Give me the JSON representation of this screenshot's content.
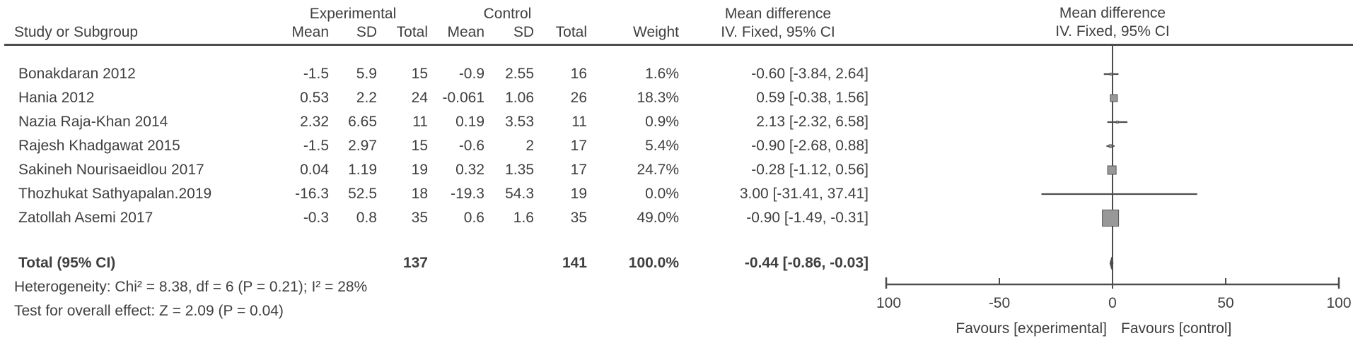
{
  "table": {
    "headers": {
      "group1": "Experimental",
      "group2": "Control",
      "study": "Study or Subgroup",
      "mean": "Mean",
      "sd": "SD",
      "total": "Total",
      "weight": "Weight",
      "md": "Mean difference",
      "method": "IV. Fixed, 95% CI"
    },
    "rows": [
      {
        "study": "Bonakdaran 2012",
        "e_mean": "-1.5",
        "e_sd": "5.9",
        "e_total": "15",
        "c_mean": "-0.9",
        "c_sd": "2.55",
        "c_total": "16",
        "weight": "1.6%",
        "ci": "-0.60 [-3.84, 2.64]"
      },
      {
        "study": "Hania 2012",
        "e_mean": "0.53",
        "e_sd": "2.2",
        "e_total": "24",
        "c_mean": "-0.061",
        "c_sd": "1.06",
        "c_total": "26",
        "weight": "18.3%",
        "ci": "0.59 [-0.38, 1.56]"
      },
      {
        "study": "Nazia Raja-Khan 2014",
        "e_mean": "2.32",
        "e_sd": "6.65",
        "e_total": "11",
        "c_mean": "0.19",
        "c_sd": "3.53",
        "c_total": "11",
        "weight": "0.9%",
        "ci": "2.13 [-2.32, 6.58]"
      },
      {
        "study": "Rajesh Khadgawat 2015",
        "e_mean": "-1.5",
        "e_sd": "2.97",
        "e_total": "15",
        "c_mean": "-0.6",
        "c_sd": "2",
        "c_total": "17",
        "weight": "5.4%",
        "ci": "-0.90 [-2.68, 0.88]"
      },
      {
        "study": "Sakineh Nourisaeidlou 2017",
        "e_mean": "0.04",
        "e_sd": "1.19",
        "e_total": "19",
        "c_mean": "0.32",
        "c_sd": "1.35",
        "c_total": "17",
        "weight": "24.7%",
        "ci": "-0.28 [-1.12, 0.56]"
      },
      {
        "study": "Thozhukat Sathyapalan.2019",
        "e_mean": "-16.3",
        "e_sd": "52.5",
        "e_total": "18",
        "c_mean": "-19.3",
        "c_sd": "54.3",
        "c_total": "19",
        "weight": "0.0%",
        "ci": "3.00 [-31.41, 37.41]"
      },
      {
        "study": "Zatollah Asemi 2017",
        "e_mean": "-0.3",
        "e_sd": "0.8",
        "e_total": "35",
        "c_mean": "0.6",
        "c_sd": "1.6",
        "c_total": "35",
        "weight": "49.0%",
        "ci": "-0.90 [-1.49, -0.31]"
      }
    ],
    "total_row": {
      "label": "Total (95% CI)",
      "e_total": "137",
      "c_total": "141",
      "weight": "100.0%",
      "ci": "-0.44 [-0.86, -0.03]"
    },
    "heterogeneity": "Heterogeneity: Chi² = 8.38, df = 6 (P = 0.21); I² = 28%",
    "overall_effect": "Test for overall effect: Z = 2.09 (P = 0.04)"
  },
  "chart_data": {
    "type": "forest",
    "effect_label": "Mean difference",
    "method_label": "IV. Fixed, 95% CI",
    "xlim": [
      -100,
      100
    ],
    "ticks": [
      -100,
      -50,
      0,
      50,
      100
    ],
    "favours_left": "Favours [experimental]",
    "favours_right": "Favours [control]",
    "studies": [
      {
        "name": "Bonakdaran 2012",
        "mean_e": -1.5,
        "sd_e": 5.9,
        "n_e": 15,
        "mean_c": -0.9,
        "sd_c": 2.55,
        "n_c": 16,
        "weight": 1.6,
        "md": -0.6,
        "lo": -3.84,
        "hi": 2.64
      },
      {
        "name": "Hania 2012",
        "mean_e": 0.53,
        "sd_e": 2.2,
        "n_e": 24,
        "mean_c": -0.061,
        "sd_c": 1.06,
        "n_c": 26,
        "weight": 18.3,
        "md": 0.59,
        "lo": -0.38,
        "hi": 1.56
      },
      {
        "name": "Nazia Raja-Khan 2014",
        "mean_e": 2.32,
        "sd_e": 6.65,
        "n_e": 11,
        "mean_c": 0.19,
        "sd_c": 3.53,
        "n_c": 11,
        "weight": 0.9,
        "md": 2.13,
        "lo": -2.32,
        "hi": 6.58
      },
      {
        "name": "Rajesh Khadgawat 2015",
        "mean_e": -1.5,
        "sd_e": 2.97,
        "n_e": 15,
        "mean_c": -0.6,
        "sd_c": 2,
        "n_c": 17,
        "weight": 5.4,
        "md": -0.9,
        "lo": -2.68,
        "hi": 0.88
      },
      {
        "name": "Sakineh Nourisaeidlou 2017",
        "mean_e": 0.04,
        "sd_e": 1.19,
        "n_e": 19,
        "mean_c": 0.32,
        "sd_c": 1.35,
        "n_c": 17,
        "weight": 24.7,
        "md": -0.28,
        "lo": -1.12,
        "hi": 0.56
      },
      {
        "name": "Thozhukat Sathyapalan.2019",
        "mean_e": -16.3,
        "sd_e": 52.5,
        "n_e": 18,
        "mean_c": -19.3,
        "sd_c": 54.3,
        "n_c": 19,
        "weight": 0.0,
        "md": 3.0,
        "lo": -31.41,
        "hi": 37.41
      },
      {
        "name": "Zatollah Asemi 2017",
        "mean_e": -0.3,
        "sd_e": 0.8,
        "n_e": 35,
        "mean_c": 0.6,
        "sd_c": 1.6,
        "n_c": 35,
        "weight": 49.0,
        "md": -0.9,
        "lo": -1.49,
        "hi": -0.31
      }
    ],
    "total": {
      "n_e": 137,
      "n_c": 141,
      "weight": 100.0,
      "md": -0.44,
      "lo": -0.86,
      "hi": -0.03
    }
  },
  "colors": {
    "text": "#3f3f3f",
    "line": "#4d4d4d",
    "marker_fill": "#989898",
    "marker_stroke": "#545454",
    "diamond": "#4d4d4d"
  }
}
